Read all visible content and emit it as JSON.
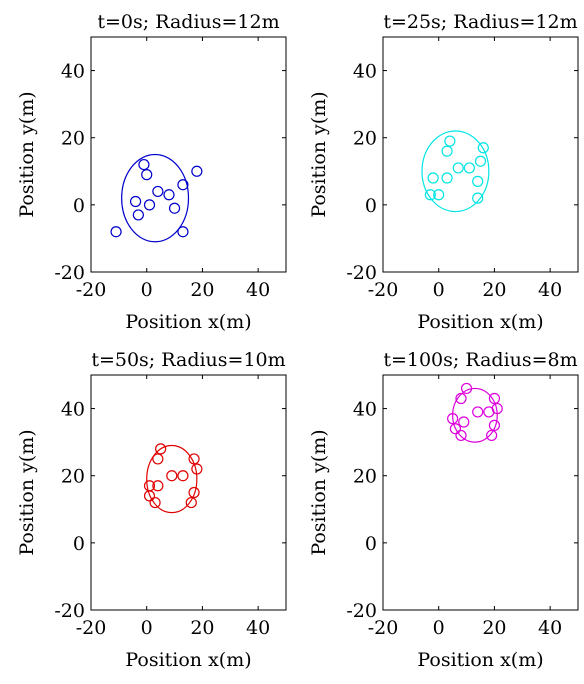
{
  "chart_data": [
    {
      "type": "scatter",
      "title": "t=0s; Radius=12m",
      "xlabel": "Position x(m)",
      "ylabel": "Position y(m)",
      "xlim": [
        -20,
        50
      ],
      "ylim": [
        -20,
        50
      ],
      "xticks": [
        -20,
        0,
        20,
        40
      ],
      "yticks": [
        -20,
        0,
        20,
        40
      ],
      "color": "#0000cc",
      "points": [
        [
          -1,
          12
        ],
        [
          0,
          9
        ],
        [
          18,
          10
        ],
        [
          -4,
          1
        ],
        [
          4,
          4
        ],
        [
          8,
          3
        ],
        [
          -3,
          -3
        ],
        [
          1,
          0
        ],
        [
          13,
          6
        ],
        [
          10,
          -1
        ],
        [
          -11,
          -8
        ],
        [
          13,
          -8
        ]
      ],
      "circle": {
        "cx": 3,
        "cy": 2,
        "rx": 12,
        "ry": 13
      }
    },
    {
      "type": "scatter",
      "title": "t=25s; Radius=12m",
      "xlabel": "Position x(m)",
      "ylabel": "Position y(m)",
      "xlim": [
        -20,
        50
      ],
      "ylim": [
        -20,
        50
      ],
      "xticks": [
        -20,
        0,
        20,
        40
      ],
      "yticks": [
        -20,
        0,
        20,
        40
      ],
      "color": "#00e5e5",
      "points": [
        [
          4,
          19
        ],
        [
          3,
          16
        ],
        [
          16,
          17
        ],
        [
          15,
          13
        ],
        [
          11,
          11
        ],
        [
          7,
          11
        ],
        [
          -2,
          8
        ],
        [
          3,
          8
        ],
        [
          14,
          7
        ],
        [
          -3,
          3
        ],
        [
          0,
          3
        ],
        [
          14,
          2
        ]
      ],
      "circle": {
        "cx": 6,
        "cy": 10,
        "rx": 12,
        "ry": 12
      }
    },
    {
      "type": "scatter",
      "title": "t=50s; Radius=10m",
      "xlabel": "Position x(m)",
      "ylabel": "Position y(m)",
      "xlim": [
        -20,
        50
      ],
      "ylim": [
        -20,
        50
      ],
      "xticks": [
        -20,
        0,
        20,
        40
      ],
      "yticks": [
        -20,
        0,
        20,
        40
      ],
      "color": "#e00000",
      "points": [
        [
          5,
          28
        ],
        [
          4,
          25
        ],
        [
          17,
          25
        ],
        [
          18,
          22
        ],
        [
          9,
          20
        ],
        [
          13,
          20
        ],
        [
          1,
          17
        ],
        [
          4,
          17
        ],
        [
          17,
          15
        ],
        [
          1,
          14
        ],
        [
          3,
          12
        ],
        [
          16,
          12
        ]
      ],
      "circle": {
        "cx": 9,
        "cy": 19,
        "rx": 9,
        "ry": 10
      }
    },
    {
      "type": "scatter",
      "title": "t=100s; Radius=8m",
      "xlabel": "Position x(m)",
      "ylabel": "Position y(m)",
      "xlim": [
        -20,
        50
      ],
      "ylim": [
        -20,
        50
      ],
      "xticks": [
        -20,
        0,
        20,
        40
      ],
      "yticks": [
        -20,
        0,
        20,
        40
      ],
      "color": "#dd00dd",
      "points": [
        [
          10,
          46
        ],
        [
          8,
          43
        ],
        [
          20,
          43
        ],
        [
          21,
          40
        ],
        [
          14,
          39
        ],
        [
          18,
          39
        ],
        [
          5,
          37
        ],
        [
          9,
          36
        ],
        [
          20,
          35
        ],
        [
          6,
          34
        ],
        [
          8,
          32
        ],
        [
          19,
          32
        ]
      ],
      "circle": {
        "cx": 13,
        "cy": 38,
        "rx": 8,
        "ry": 8
      }
    }
  ]
}
